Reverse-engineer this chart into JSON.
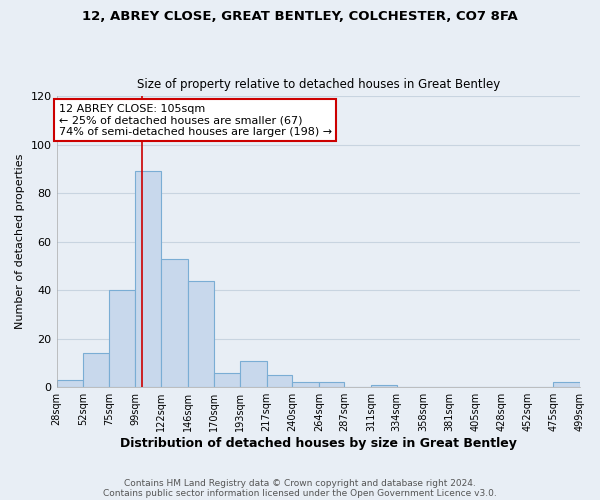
{
  "title1": "12, ABREY CLOSE, GREAT BENTLEY, COLCHESTER, CO7 8FA",
  "title2": "Size of property relative to detached houses in Great Bentley",
  "xlabel": "Distribution of detached houses by size in Great Bentley",
  "ylabel": "Number of detached properties",
  "footer1": "Contains HM Land Registry data © Crown copyright and database right 2024.",
  "footer2": "Contains public sector information licensed under the Open Government Licence v3.0.",
  "bin_edges": [
    28,
    52,
    75,
    99,
    122,
    146,
    170,
    193,
    217,
    240,
    264,
    287,
    311,
    334,
    358,
    381,
    405,
    428,
    452,
    475,
    499
  ],
  "bin_labels": [
    "28sqm",
    "52sqm",
    "75sqm",
    "99sqm",
    "122sqm",
    "146sqm",
    "170sqm",
    "193sqm",
    "217sqm",
    "240sqm",
    "264sqm",
    "287sqm",
    "311sqm",
    "334sqm",
    "358sqm",
    "381sqm",
    "405sqm",
    "428sqm",
    "452sqm",
    "475sqm",
    "499sqm"
  ],
  "counts": [
    3,
    14,
    40,
    89,
    53,
    44,
    6,
    11,
    5,
    2,
    2,
    0,
    1,
    0,
    0,
    0,
    0,
    0,
    0,
    2
  ],
  "bar_color": "#c8d8ec",
  "bar_edge_color": "#7aadd4",
  "grid_color": "#c8d4e0",
  "bg_color": "#e8eef5",
  "vline_x": 105,
  "vline_color": "#cc0000",
  "annotation_line1": "12 ABREY CLOSE: 105sqm",
  "annotation_line2": "← 25% of detached houses are smaller (67)",
  "annotation_line3": "74% of semi-detached houses are larger (198) →",
  "annotation_box_color": "#ffffff",
  "annotation_border_color": "#cc0000",
  "ylim": [
    0,
    120
  ],
  "yticks": [
    0,
    20,
    40,
    60,
    80,
    100,
    120
  ]
}
